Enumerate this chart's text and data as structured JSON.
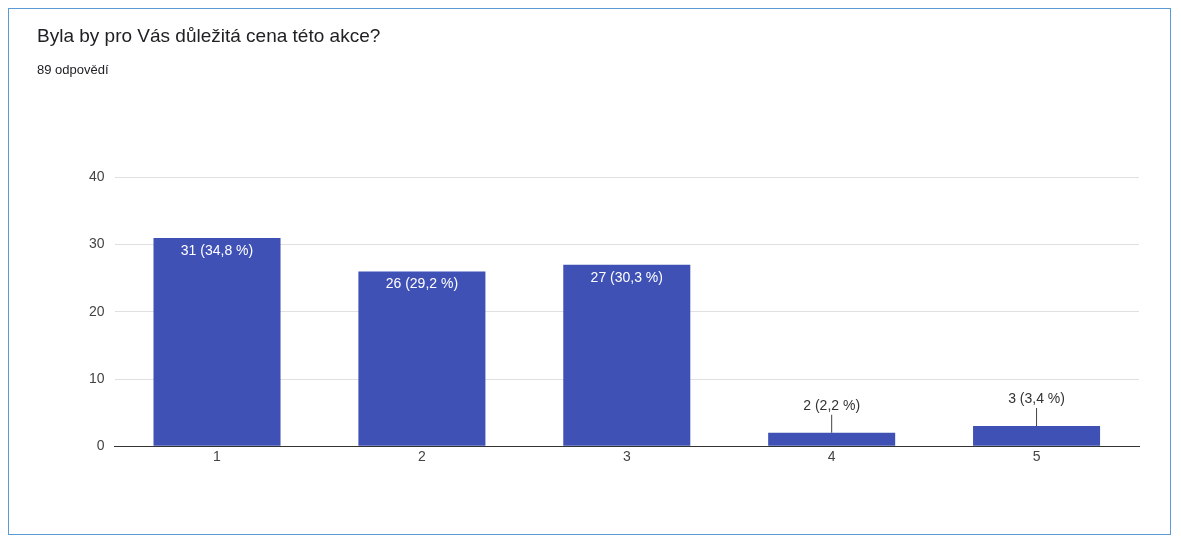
{
  "chart_data": {
    "type": "bar",
    "title": "Byla by pro Vás důležitá cena této akce?",
    "subtitle": "89 odpovědí",
    "categories": [
      "1",
      "2",
      "3",
      "4",
      "5"
    ],
    "values": [
      31,
      26,
      27,
      2,
      3
    ],
    "value_labels": [
      "31 (34,8 %)",
      "26 (29,2 %)",
      "27 (30,3 %)",
      "2 (2,2 %)",
      "3 (3,4 %)"
    ],
    "color": "#3f51b5",
    "ylim": [
      0,
      40
    ],
    "yticks": [
      0,
      10,
      20,
      30,
      40
    ],
    "grid": "y",
    "legend": false
  }
}
